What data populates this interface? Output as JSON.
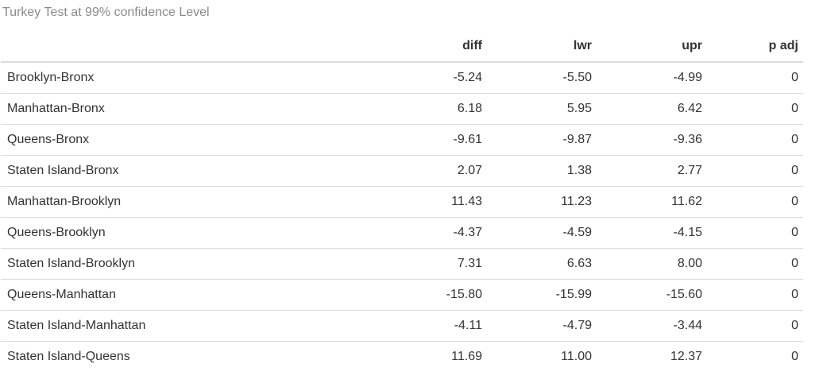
{
  "caption": "Turkey Test at 99% confidence Level",
  "table": {
    "columns": [
      "",
      "diff",
      "lwr",
      "upr",
      "p adj"
    ],
    "rows": [
      {
        "label": "Brooklyn-Bronx",
        "diff": "-5.24",
        "lwr": "-5.50",
        "upr": "-4.99",
        "p_adj": "0"
      },
      {
        "label": "Manhattan-Bronx",
        "diff": "6.18",
        "lwr": "5.95",
        "upr": "6.42",
        "p_adj": "0"
      },
      {
        "label": "Queens-Bronx",
        "diff": "-9.61",
        "lwr": "-9.87",
        "upr": "-9.36",
        "p_adj": "0"
      },
      {
        "label": "Staten Island-Bronx",
        "diff": "2.07",
        "lwr": "1.38",
        "upr": "2.77",
        "p_adj": "0"
      },
      {
        "label": "Manhattan-Brooklyn",
        "diff": "11.43",
        "lwr": "11.23",
        "upr": "11.62",
        "p_adj": "0"
      },
      {
        "label": "Queens-Brooklyn",
        "diff": "-4.37",
        "lwr": "-4.59",
        "upr": "-4.15",
        "p_adj": "0"
      },
      {
        "label": "Staten Island-Brooklyn",
        "diff": "7.31",
        "lwr": "6.63",
        "upr": "8.00",
        "p_adj": "0"
      },
      {
        "label": "Queens-Manhattan",
        "diff": "-15.80",
        "lwr": "-15.99",
        "upr": "-15.60",
        "p_adj": "0"
      },
      {
        "label": "Staten Island-Manhattan",
        "diff": "-4.11",
        "lwr": "-4.79",
        "upr": "-3.44",
        "p_adj": "0"
      },
      {
        "label": "Staten Island-Queens",
        "diff": "11.69",
        "lwr": "11.00",
        "upr": "12.37",
        "p_adj": "0"
      }
    ]
  }
}
